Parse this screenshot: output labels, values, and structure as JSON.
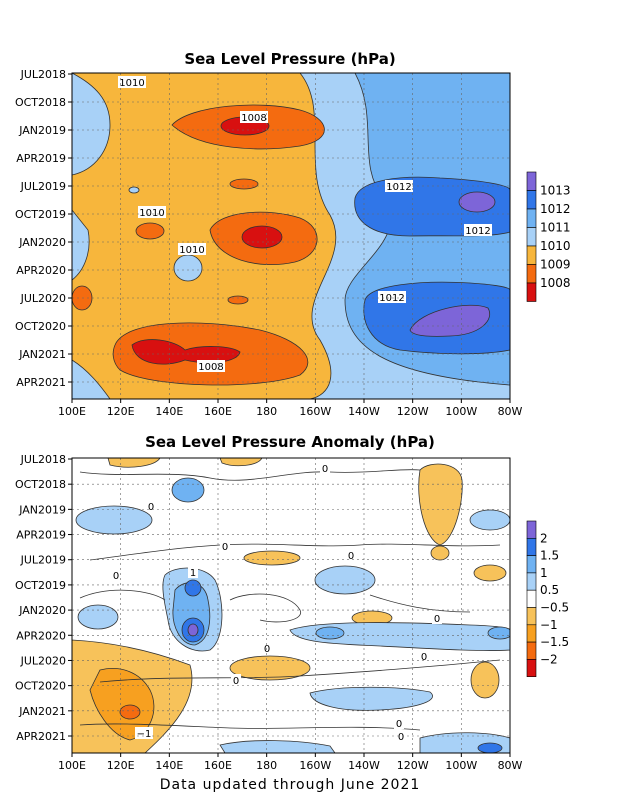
{
  "footer": "Data updated through June 2021",
  "chart_data": [
    {
      "type": "heatmap",
      "title": "Sea Level Pressure (hPa)",
      "xlabel": "",
      "ylabel": "",
      "x_ticks": [
        "100E",
        "120E",
        "140E",
        "160E",
        "180",
        "160W",
        "140W",
        "120W",
        "100W",
        "80W"
      ],
      "y_ticks": [
        "JUL2018",
        "OCT2018",
        "JAN2019",
        "APR2019",
        "JUL2019",
        "OCT2019",
        "JAN2020",
        "APR2020",
        "JUL2020",
        "OCT2020",
        "JAN2021",
        "APR2021"
      ],
      "colorbar_levels": [
        "1008",
        "1009",
        "1010",
        "1011",
        "1012",
        "1013"
      ],
      "contour_labels": [
        "1010",
        "1008",
        "1012",
        "1010",
        "1012",
        "1010",
        "1012",
        "1008"
      ],
      "grid": true,
      "colors": {
        "below_1008": "#d81010",
        "1008_1009": "#f46b10",
        "1009_1010": "#f7b63c",
        "1010_1011": "#a8d1f7",
        "1011_1012": "#6fb2f2",
        "1012_1013": "#3076e8",
        "above_1013": "#7d65d8"
      }
    },
    {
      "type": "heatmap",
      "title": "Sea Level Pressure Anomaly (hPa)",
      "xlabel": "",
      "ylabel": "",
      "x_ticks": [
        "100E",
        "120E",
        "140E",
        "160E",
        "180",
        "160W",
        "140W",
        "120W",
        "100W",
        "80W"
      ],
      "y_ticks": [
        "JUL2018",
        "OCT2018",
        "JAN2019",
        "APR2019",
        "JUL2019",
        "OCT2019",
        "JAN2020",
        "APR2020",
        "JUL2020",
        "OCT2020",
        "JAN2021",
        "APR2021"
      ],
      "colorbar_levels": [
        "−2",
        "−1.5",
        "−1",
        "−0.5",
        "0.5",
        "1",
        "1.5",
        "2"
      ],
      "contour_labels": [
        "0",
        "0",
        "0",
        "0",
        "0",
        "0",
        "1",
        "0",
        "0",
        "0",
        "0",
        "0",
        "−1"
      ],
      "grid": true,
      "colors": {
        "below_-2": "#d81010",
        "-2_-1.5": "#f46b10",
        "-1.5_-1": "#f7a020",
        "-1_-0.5": "#f7c25a",
        "-0.5_0.5": "#ffffff",
        "0.5_1": "#a8d1f7",
        "1_1.5": "#6fb2f2",
        "1.5_2": "#3076e8",
        "above_2": "#7d65d8"
      }
    }
  ]
}
